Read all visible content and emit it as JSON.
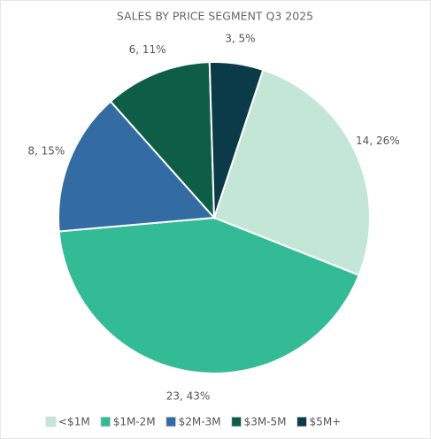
{
  "chart_data": {
    "type": "pie",
    "title": "SALES BY PRICE SEGMENT Q3 2025",
    "categories": [
      "<$1M",
      "$1M-2M",
      "$2M-3M",
      "$3M-5M",
      "$5M+"
    ],
    "values": [
      14,
      23,
      8,
      6,
      3
    ],
    "value_labels": [
      "14, 26%",
      "23, 43%",
      "8, 15%",
      "6, 11%",
      "3, 5%"
    ],
    "colors": [
      "#c3e6d6",
      "#33bb96",
      "#336ba3",
      "#0e5e47",
      "#0b3a48"
    ],
    "legend": "bottom"
  }
}
